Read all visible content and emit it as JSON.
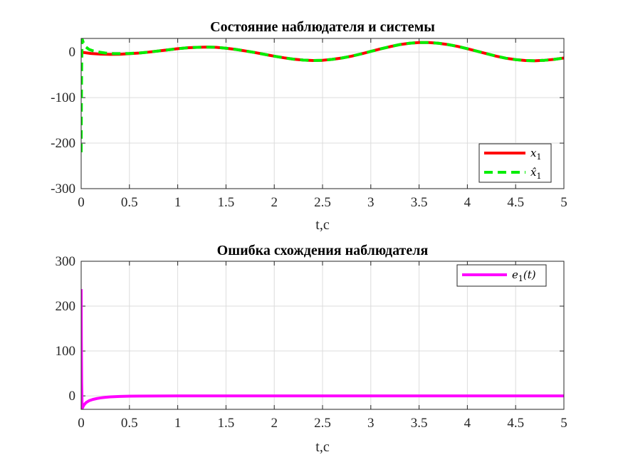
{
  "chart_data": [
    {
      "type": "line",
      "title": "Состояние наблюдателя и системы",
      "xlabel": "t,c",
      "ylabel": "",
      "xlim": [
        0,
        5
      ],
      "ylim": [
        -300,
        30
      ],
      "xticks": [
        "0",
        "0.5",
        "1",
        "1.5",
        "2",
        "2.5",
        "3",
        "3.5",
        "4",
        "4.5",
        "5"
      ],
      "xtick_values": [
        0,
        0.5,
        1,
        1.5,
        2,
        2.5,
        3,
        3.5,
        4,
        4.5,
        5
      ],
      "yticks": [
        "-300",
        "-200",
        "-100",
        "0"
      ],
      "ytick_values": [
        -300,
        -200,
        -100,
        0
      ],
      "grid": true,
      "legend_position": "bottom-right",
      "series": [
        {
          "name": "x1",
          "color": "#ff0000",
          "style": "solid",
          "x": [
            0,
            0.1,
            0.2,
            0.3,
            0.4,
            0.5,
            0.6,
            0.7,
            0.8,
            0.9,
            1.0,
            1.1,
            1.2,
            1.3,
            1.4,
            1.5,
            1.6,
            1.7,
            1.8,
            1.9,
            2.0,
            2.1,
            2.2,
            2.3,
            2.4,
            2.5,
            2.6,
            2.7,
            2.8,
            2.9,
            3.0,
            3.1,
            3.2,
            3.3,
            3.4,
            3.5,
            3.6,
            3.7,
            3.8,
            3.9,
            4.0,
            4.1,
            4.2,
            4.3,
            4.4,
            4.5,
            4.6,
            4.7,
            4.8,
            4.9,
            5.0
          ],
          "y": [
            0,
            -3,
            -4.5,
            -5,
            -4.8,
            -3.5,
            -2,
            0,
            2.5,
            5,
            7.5,
            9.5,
            10.5,
            11,
            10.5,
            8.5,
            6,
            2.5,
            -1,
            -5,
            -9,
            -12.5,
            -15.5,
            -17.5,
            -18.5,
            -18,
            -16,
            -13,
            -9,
            -4,
            1.5,
            7,
            12,
            16.5,
            19.5,
            21,
            21,
            19.5,
            16.5,
            12.5,
            7.5,
            2,
            -3.5,
            -9,
            -13.5,
            -16.5,
            -18.5,
            -19,
            -18,
            -16,
            -13
          ]
        },
        {
          "name": "x̂1",
          "color": "#00ee00",
          "style": "dashed",
          "x": [
            0,
            0.002,
            0.005,
            0.01,
            0.015,
            0.02,
            0.03,
            0.05,
            0.08,
            0.12,
            0.16,
            0.2,
            0.25,
            0.3,
            0.35,
            0.4,
            0.5,
            0.6,
            0.7,
            0.8,
            0.9,
            1.0,
            1.1,
            1.2,
            1.3,
            1.4,
            1.5,
            1.6,
            1.7,
            1.8,
            1.9,
            2.0,
            2.1,
            2.2,
            2.3,
            2.4,
            2.5,
            2.6,
            2.7,
            2.8,
            2.9,
            3.0,
            3.1,
            3.2,
            3.3,
            3.4,
            3.5,
            3.6,
            3.7,
            3.8,
            3.9,
            4.0,
            4.1,
            4.2,
            4.3,
            4.4,
            4.5,
            4.6,
            4.7,
            4.8,
            4.9,
            5.0
          ],
          "y": [
            -220,
            -120,
            -30,
            28,
            26,
            22,
            17,
            11,
            6,
            3,
            1,
            -0.5,
            -2,
            -3,
            -3.5,
            -3.5,
            -3,
            -2,
            0,
            2.5,
            5,
            7.5,
            9.5,
            10.5,
            11,
            10.5,
            8.5,
            6,
            2.5,
            -1,
            -5,
            -9,
            -12.5,
            -15.5,
            -17.5,
            -18.5,
            -18,
            -16,
            -13,
            -9,
            -4,
            1.5,
            7,
            12,
            16.5,
            19.5,
            21,
            21,
            19.5,
            16.5,
            12.5,
            7.5,
            2,
            -3.5,
            -9,
            -13.5,
            -16.5,
            -18.5,
            -19,
            -18,
            -16,
            -13
          ]
        }
      ]
    },
    {
      "type": "line",
      "title": "Ошибка схождения наблюдателя",
      "xlabel": "t,c",
      "ylabel": "",
      "xlim": [
        0,
        5
      ],
      "ylim": [
        -30,
        300
      ],
      "xticks": [
        "0",
        "0.5",
        "1",
        "1.5",
        "2",
        "2.5",
        "3",
        "3.5",
        "4",
        "4.5",
        "5"
      ],
      "xtick_values": [
        0,
        0.5,
        1,
        1.5,
        2,
        2.5,
        3,
        3.5,
        4,
        4.5,
        5
      ],
      "yticks": [
        "0",
        "100",
        "200",
        "300"
      ],
      "ytick_values": [
        0,
        100,
        200,
        300
      ],
      "grid": true,
      "legend_position": "top-right",
      "series": [
        {
          "name": "e1(t)",
          "color": "#ff00ff",
          "style": "solid",
          "x": [
            0,
            0.002,
            0.005,
            0.01,
            0.015,
            0.02,
            0.03,
            0.05,
            0.08,
            0.12,
            0.16,
            0.2,
            0.25,
            0.3,
            0.4,
            0.5,
            0.6,
            0.8,
            1.0,
            1.5,
            2.0,
            3.0,
            4.0,
            5.0
          ],
          "y": [
            238,
            120,
            30,
            -28,
            -26,
            -24,
            -20,
            -15,
            -11,
            -8,
            -6,
            -4.5,
            -3.2,
            -2.3,
            -1.3,
            -0.7,
            -0.4,
            -0.15,
            -0.05,
            0,
            0,
            0,
            0,
            0
          ]
        }
      ]
    }
  ]
}
